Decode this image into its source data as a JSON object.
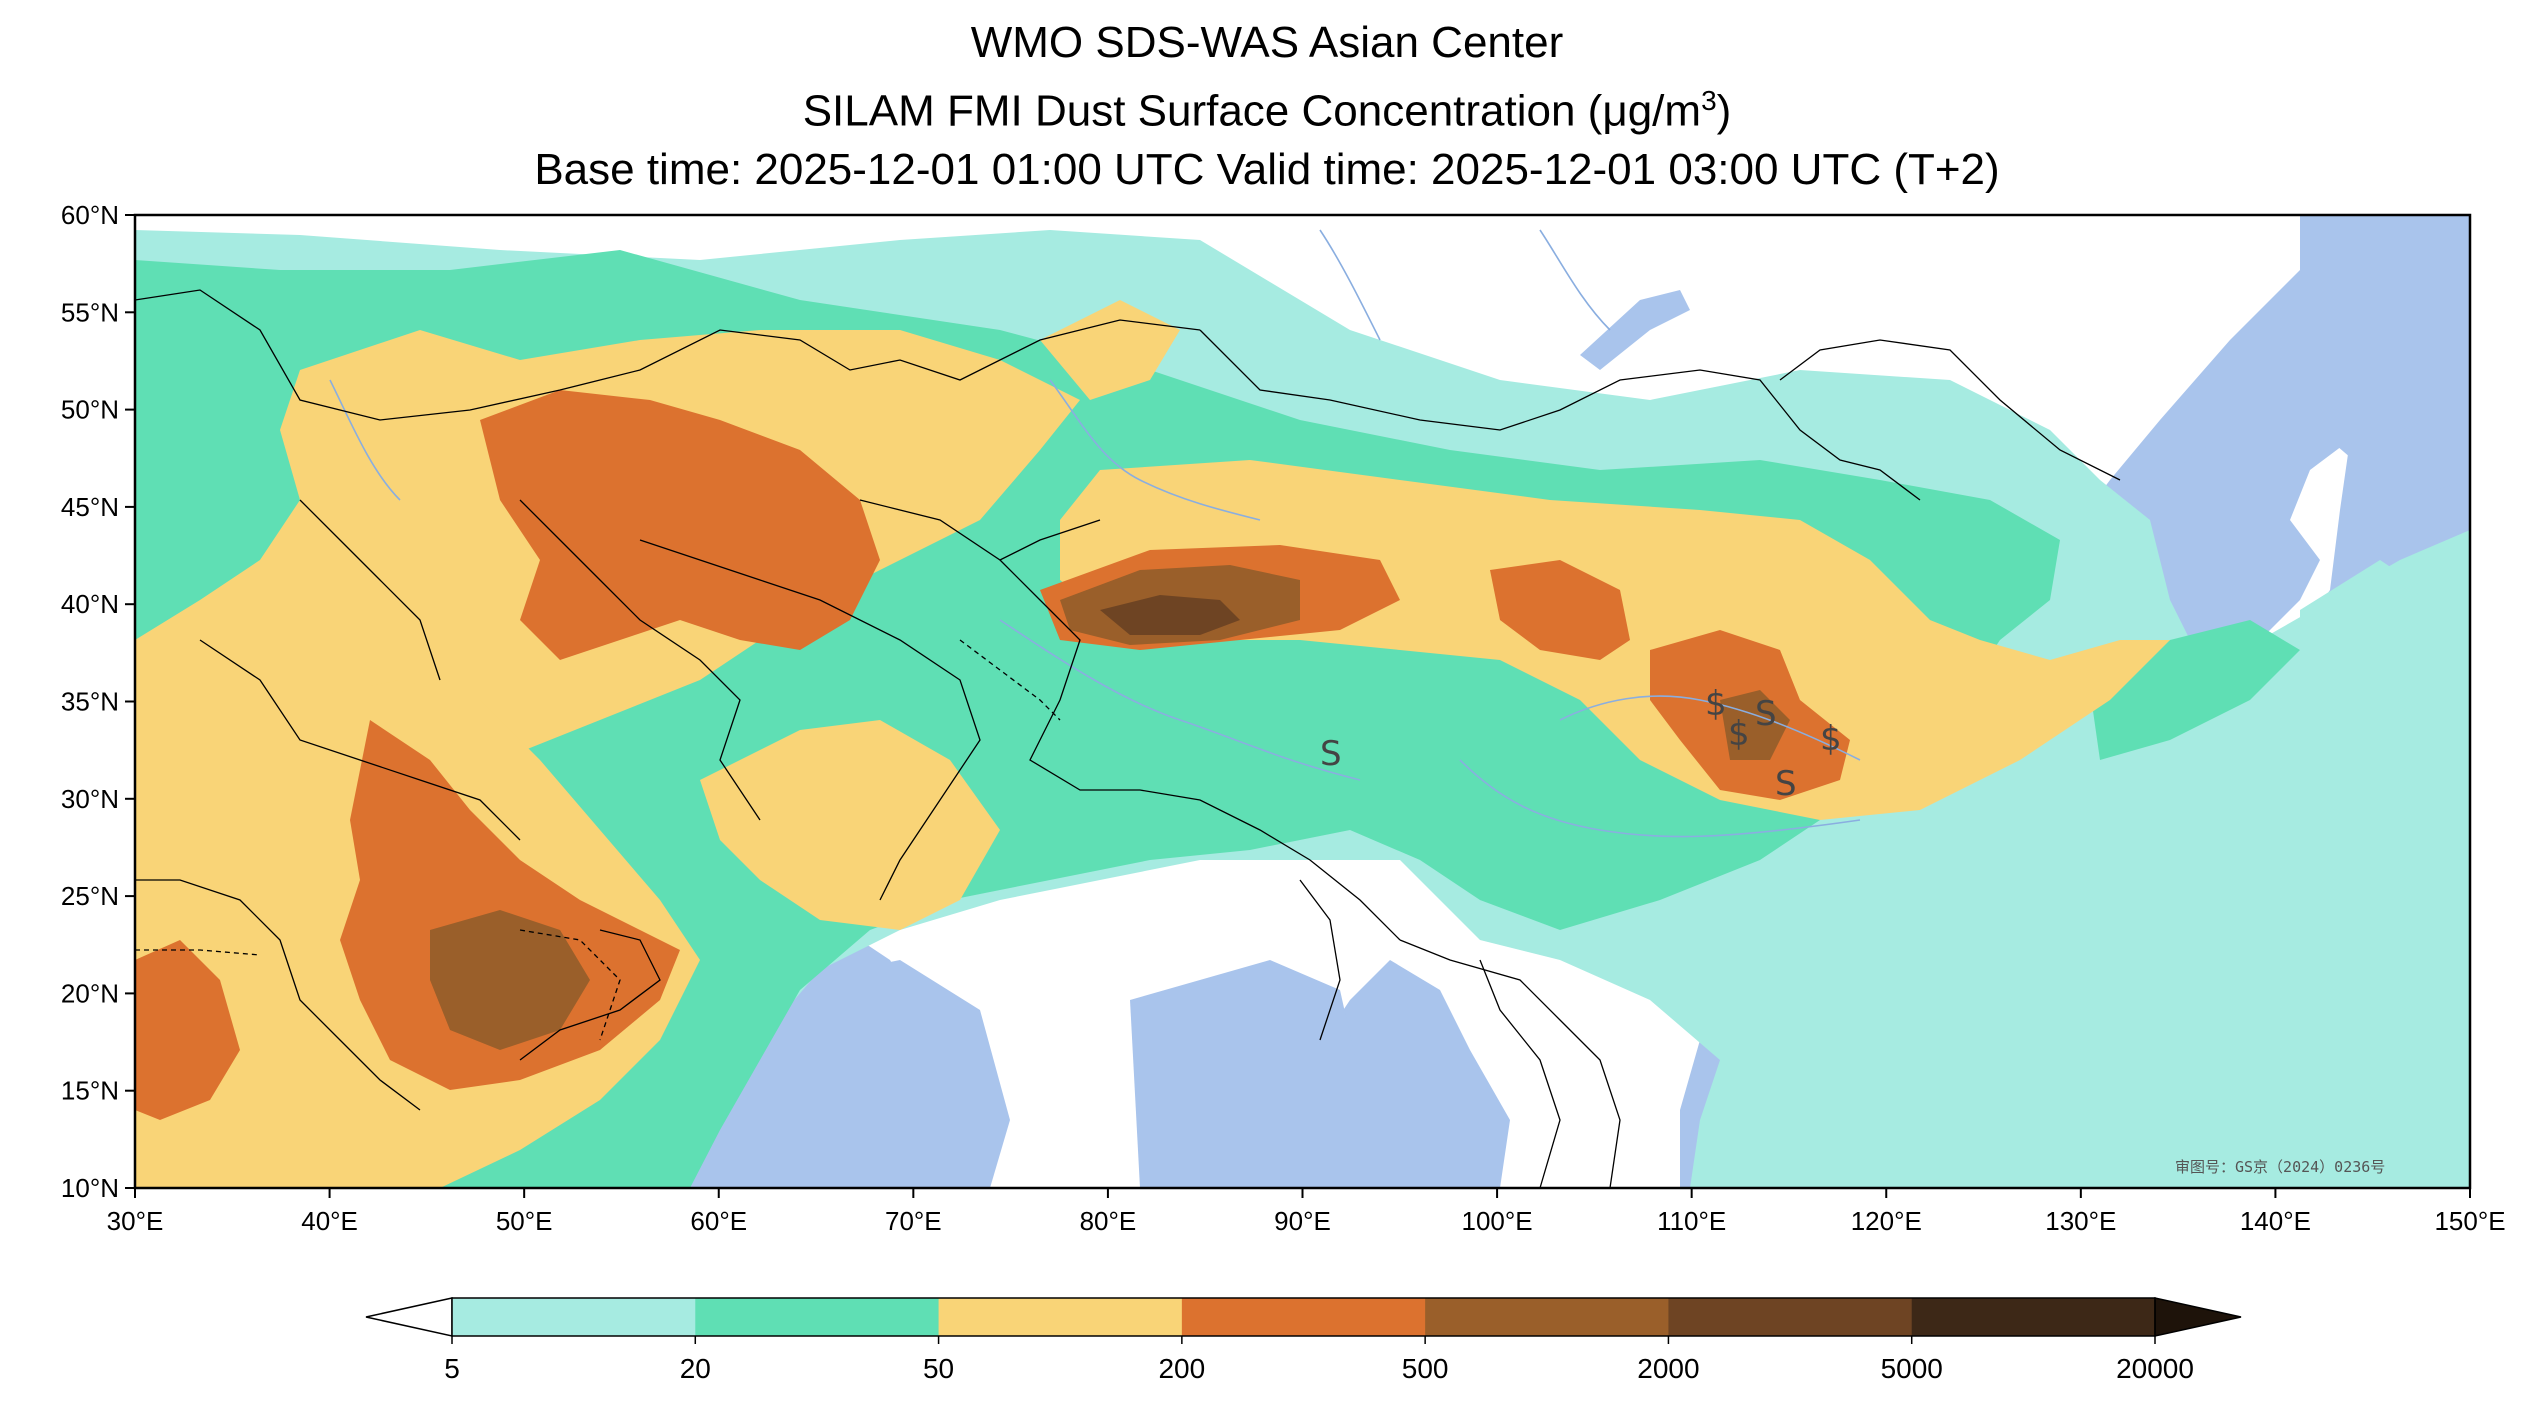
{
  "title": {
    "line1": "WMO SDS-WAS Asian Center",
    "line2_prefix": "SILAM FMI Dust Surface Concentration (",
    "line2_unit_mu": "μ",
    "line2_unit_rest": "g/m",
    "line2_unit_exp": "3",
    "line2_suffix": ")",
    "line3": "Base time: 2025-12-01 01:00 UTC Valid time: 2025-12-01 03:00 UTC (T+2)"
  },
  "map": {
    "lon_range": [
      30,
      150
    ],
    "lat_range": [
      10,
      60
    ],
    "lon_ticks": [
      "30°E",
      "40°E",
      "50°E",
      "60°E",
      "70°E",
      "80°E",
      "90°E",
      "100°E",
      "110°E",
      "120°E",
      "130°E",
      "140°E",
      "150°E"
    ],
    "lat_ticks": [
      "60°N",
      "55°N",
      "50°N",
      "45°N",
      "40°N",
      "35°N",
      "30°N",
      "25°N",
      "20°N",
      "15°N",
      "10°N"
    ],
    "watermark": "审图号：GS京（2024）0236号",
    "colors": {
      "ocean": "#a9c4ec",
      "land": "#ffffff",
      "level_5_20": "#a6ebe1",
      "level_20_50": "#5fdfb4",
      "level_50_200": "#f9d477",
      "level_200_500": "#dc722f",
      "level_500_2000": "#9a5f2a",
      "level_2000_5000": "#6e4423",
      "level_5000_20000": "#3d2817"
    }
  },
  "colorbar": {
    "labels": [
      "5",
      "20",
      "50",
      "200",
      "500",
      "2000",
      "5000",
      "20000"
    ],
    "colors": [
      "#a6ebe1",
      "#5fdfb4",
      "#f9d477",
      "#dc722f",
      "#9a5f2a",
      "#6e4423",
      "#3d2817"
    ],
    "under_color": "#ffffff",
    "over_color": "#1e130a"
  }
}
